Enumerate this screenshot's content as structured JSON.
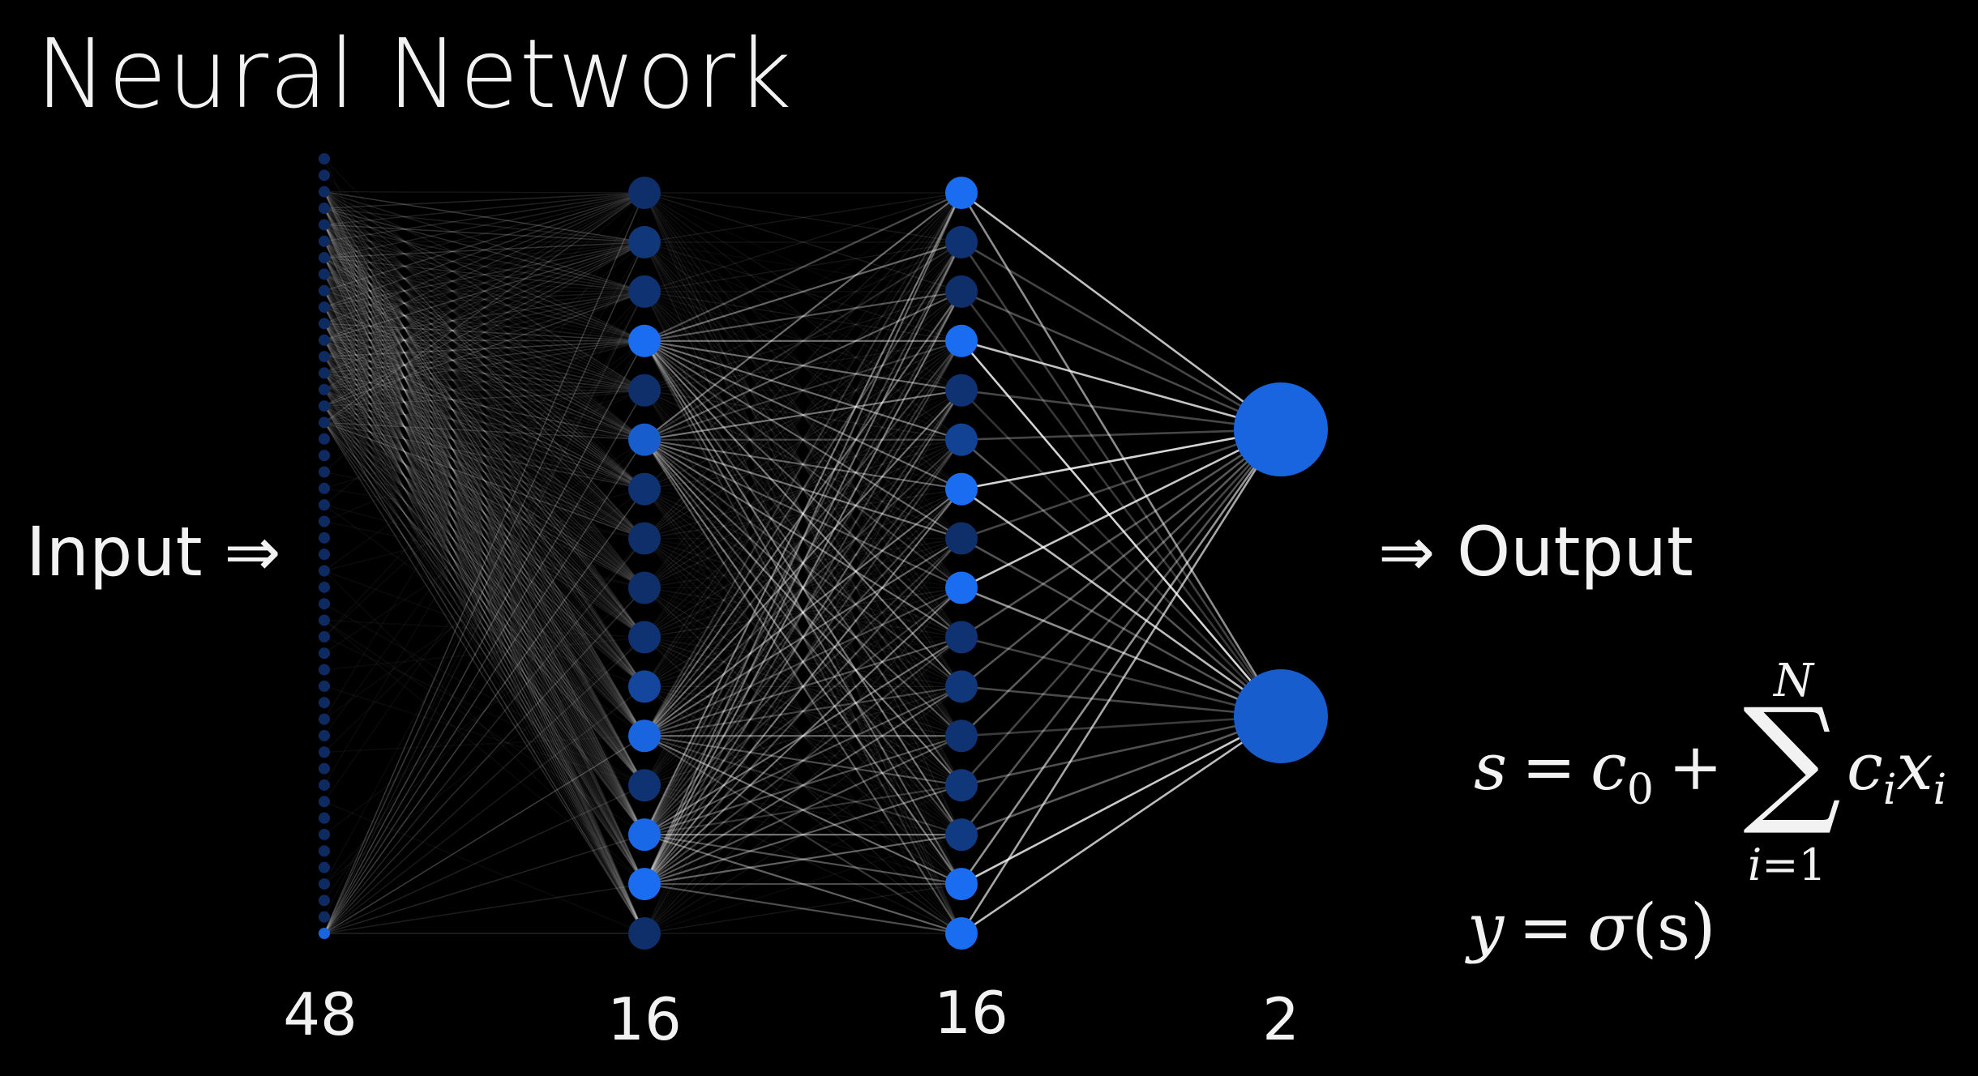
{
  "title": "Neural Network",
  "input_label": "Input ⇒",
  "output_label": "⇒ Output",
  "layers": [
    {
      "count_label": "48",
      "neurons": 48
    },
    {
      "count_label": "16",
      "neurons": 16
    },
    {
      "count_label": "16",
      "neurons": 16
    },
    {
      "count_label": "2",
      "neurons": 2
    }
  ],
  "activations": {
    "hidden1": [
      0.2,
      0.3,
      0.25,
      1.0,
      0.2,
      0.8,
      0.25,
      0.2,
      0.2,
      0.25,
      0.5,
      0.9,
      0.25,
      0.95,
      1.0,
      0.2
    ],
    "hidden2": [
      1.0,
      0.25,
      0.2,
      1.0,
      0.25,
      0.45,
      1.0,
      0.2,
      1.0,
      0.25,
      0.3,
      0.25,
      0.3,
      0.35,
      1.0,
      1.0
    ],
    "output": [
      0.9,
      0.8
    ]
  },
  "colors": {
    "background": "#000000",
    "neuron_active": "#1a6cf0",
    "neuron_dim": "#0b2048",
    "edge": "#ffffff"
  },
  "equations": {
    "s_lhs": "s",
    "equals": "=",
    "c": "c",
    "c_sub": "0",
    "plus": "+",
    "sigma": "∑",
    "sigma_top": "N",
    "sigma_bot_var": "i",
    "sigma_bot_rest": "=1",
    "term_c": "c",
    "term_c_sub": "i",
    "term_x": "x",
    "term_x_sub": "i",
    "y_lhs": "y",
    "y_rhs_func": "σ",
    "y_rhs_arg": "(s)"
  }
}
